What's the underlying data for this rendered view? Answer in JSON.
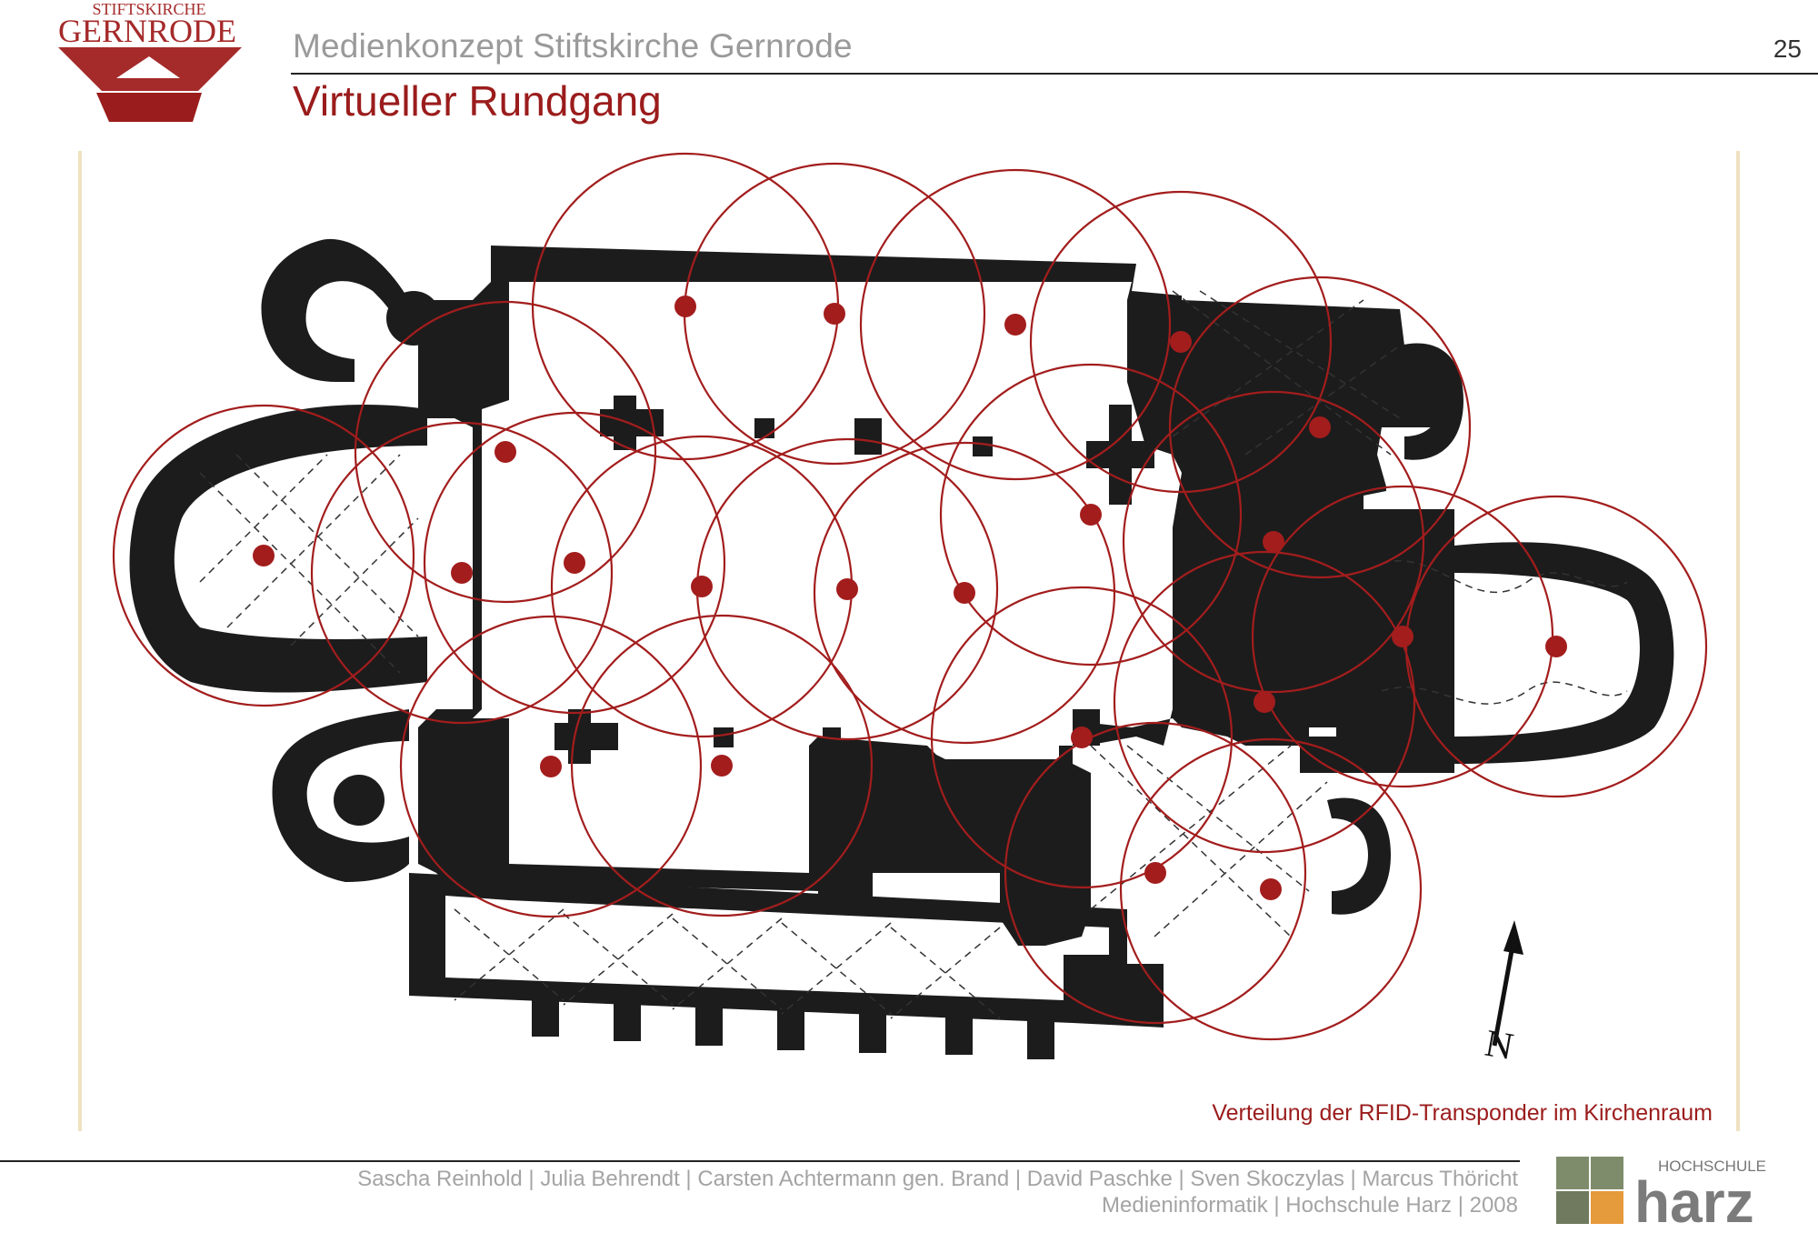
{
  "logo": {
    "line1": "STIFTSKIRCHE",
    "line2": "GERNRODE",
    "color": "#a52a2a"
  },
  "header": {
    "subtitle": "Medienkonzept Stiftskirche Gernrode",
    "title": "Virtueller Rundgang",
    "page_number": "25"
  },
  "diagram": {
    "north_label": "N",
    "caption": "Verteilung der RFID-Transponder im Kirchenraum",
    "transponder_color": "#a31d1d",
    "wall_color": "#1c1c1c"
  },
  "footer": {
    "authors": "Sascha Reinhold | Julia Behrendt | Carsten Achtermann gen. Brand | David Paschke | Sven Skoczylas | Marcus Thöricht",
    "org": "Medieninformatik | Hochschule Harz | 2008",
    "hs_label": "HOCHSCHULE",
    "hs_name": "harz"
  }
}
